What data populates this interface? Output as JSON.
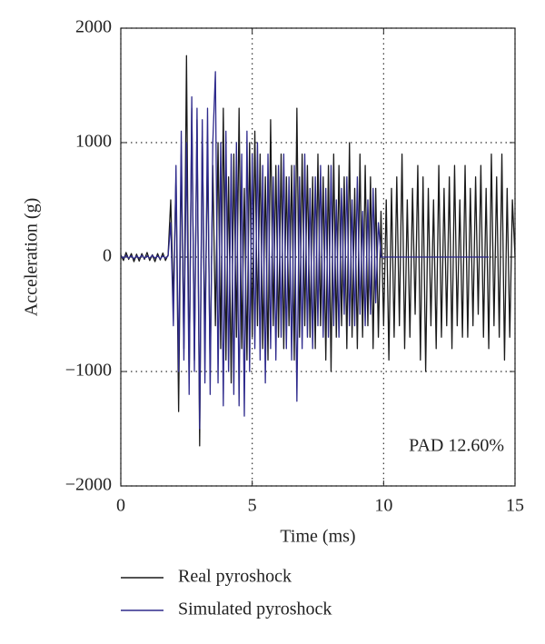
{
  "chart_data": {
    "type": "line",
    "xlabel": "Time (ms)",
    "ylabel": "Acceleration (g)",
    "annotation": "PAD 12.60%",
    "xlim": [
      0,
      15
    ],
    "xticks": [
      0,
      5,
      10,
      15
    ],
    "ylim": [
      -2000,
      2000
    ],
    "yticks": [
      {
        "value": -2000,
        "label": "−2000"
      },
      {
        "value": -1000,
        "label": "−1000"
      },
      0,
      1000,
      2000
    ],
    "grid": true,
    "x": [
      0,
      0.1,
      0.2,
      0.3,
      0.4,
      0.5,
      0.6,
      0.7,
      0.8,
      0.9,
      1,
      1.1,
      1.2,
      1.3,
      1.4,
      1.5,
      1.6,
      1.7,
      1.8,
      1.9,
      2,
      2.1,
      2.2,
      2.3,
      2.4,
      2.5,
      2.6,
      2.7,
      2.8,
      2.9,
      3,
      3.1,
      3.2,
      3.3,
      3.4,
      3.5,
      3.6,
      3.7,
      3.8,
      3.9,
      4,
      4.1,
      4.2,
      4.3,
      4.4,
      4.5,
      4.6,
      4.7,
      4.8,
      4.9,
      5,
      5.1,
      5.2,
      5.3,
      5.4,
      5.5,
      5.6,
      5.7,
      5.8,
      5.9,
      6,
      6.1,
      6.2,
      6.3,
      6.4,
      6.5,
      6.6,
      6.7,
      6.8,
      6.9,
      7,
      7.1,
      7.2,
      7.3,
      7.4,
      7.5,
      7.6,
      7.7,
      7.8,
      7.9,
      8,
      8.1,
      8.2,
      8.3,
      8.4,
      8.5,
      8.6,
      8.7,
      8.8,
      8.9,
      9,
      9.1,
      9.2,
      9.3,
      9.4,
      9.5,
      9.6,
      9.7,
      9.8,
      9.9,
      10,
      10.1,
      10.2,
      10.3,
      10.4,
      10.5,
      10.6,
      10.7,
      10.8,
      10.9,
      11,
      11.1,
      11.2,
      11.3,
      11.4,
      11.5,
      11.6,
      11.7,
      11.8,
      11.9,
      12,
      12.1,
      12.2,
      12.3,
      12.4,
      12.5,
      12.6,
      12.7,
      12.8,
      12.9,
      13,
      13.1,
      13.2,
      13.3,
      13.4,
      13.5,
      13.6,
      13.7,
      13.8,
      13.9,
      14,
      14.1,
      14.2,
      14.3,
      14.4,
      14.5,
      14.6,
      14.7,
      14.8,
      14.9,
      15
    ],
    "series": [
      {
        "name": "Real pyroshock",
        "color": "#1a1a1a",
        "values": [
          20,
          -30,
          40,
          -20,
          30,
          -40,
          25,
          -35,
          30,
          -20,
          40,
          -30,
          20,
          -40,
          30,
          -25,
          35,
          -30,
          20,
          500,
          -400,
          700,
          -1350,
          900,
          -800,
          1760,
          -1100,
          1300,
          -900,
          1200,
          -1650,
          1100,
          -700,
          900,
          -1000,
          800,
          -600,
          1000,
          -800,
          1300,
          -900,
          700,
          -1100,
          900,
          -700,
          1300,
          -800,
          600,
          -900,
          1000,
          -700,
          1100,
          -600,
          900,
          -800,
          700,
          -900,
          1200,
          -600,
          800,
          -700,
          900,
          -800,
          700,
          -600,
          800,
          -900,
          1300,
          -700,
          900,
          -600,
          800,
          -700,
          700,
          -800,
          900,
          -600,
          700,
          -900,
          800,
          -1000,
          900,
          -700,
          800,
          -600,
          700,
          -800,
          1000,
          -700,
          600,
          -800,
          900,
          -700,
          800,
          -600,
          700,
          -800,
          600,
          -700,
          400,
          -600,
          500,
          -900,
          600,
          -700,
          700,
          -600,
          900,
          -800,
          500,
          -700,
          600,
          -500,
          800,
          -900,
          700,
          -1000,
          600,
          -600,
          500,
          -800,
          800,
          -700,
          600,
          -600,
          700,
          -800,
          800,
          -600,
          500,
          -700,
          800,
          -700,
          600,
          -600,
          700,
          -500,
          800,
          -700,
          600,
          -800,
          900,
          -600,
          700,
          -700,
          900,
          -900,
          600,
          -700,
          500,
          0
        ]
      },
      {
        "name": "Simulated pyroshock",
        "color": "#2e2a8c",
        "values": [
          10,
          -10,
          15,
          -10,
          10,
          -15,
          10,
          -10,
          15,
          -10,
          10,
          -10,
          15,
          -10,
          10,
          -15,
          10,
          -10,
          10,
          300,
          -600,
          800,
          -1000,
          1100,
          -900,
          1000,
          -1200,
          1400,
          -1000,
          1300,
          -1500,
          1200,
          -1100,
          1300,
          -1200,
          1000,
          1620,
          -1100,
          1000,
          -1300,
          1100,
          -1000,
          900,
          -1200,
          1000,
          -1300,
          900,
          -1390,
          1100,
          -1000,
          900,
          -800,
          1000,
          -900,
          800,
          -1100,
          900,
          -800,
          700,
          -900,
          800,
          -700,
          900,
          -800,
          700,
          -900,
          800,
          -1260,
          700,
          -800,
          900,
          -700,
          600,
          -800,
          700,
          -600,
          800,
          -700,
          600,
          -700,
          800,
          -600,
          500,
          -700,
          600,
          -500,
          700,
          -600,
          500,
          -600,
          700,
          -500,
          400,
          -600,
          500,
          -500,
          600,
          -400,
          300,
          0,
          0,
          0,
          0,
          0,
          0,
          0,
          0,
          0,
          0,
          0,
          0,
          0,
          0,
          0,
          0,
          0,
          0,
          0,
          0,
          0,
          0,
          0,
          0,
          0,
          0,
          0,
          0,
          0,
          0,
          0,
          0,
          0,
          0,
          0,
          0,
          0,
          0,
          0,
          0,
          0,
          0,
          null,
          null,
          null,
          null,
          null,
          null,
          null,
          null,
          null,
          null
        ]
      }
    ]
  }
}
